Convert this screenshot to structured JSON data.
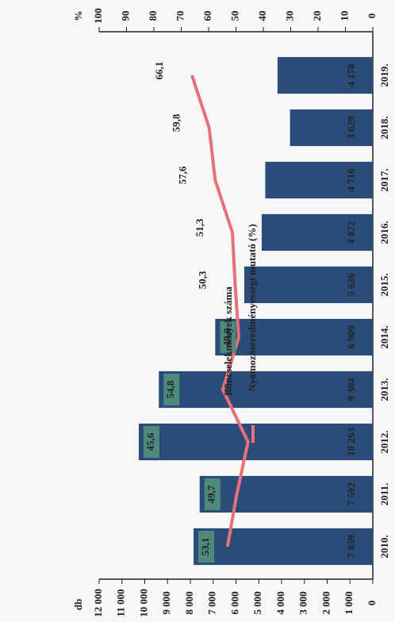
{
  "chart_data": {
    "type": "bar-line",
    "categories": [
      "2010.",
      "2011.",
      "2012.",
      "2013.",
      "2014.",
      "2015.",
      "2016.",
      "2017.",
      "2018.",
      "2019."
    ],
    "y_label": "db",
    "y2_label": "%",
    "series": [
      {
        "name": "Bűncselekmények száma",
        "color": "#2b4c78",
        "type": "bar",
        "values": [
          7859,
          7592,
          10263,
          9384,
          6909,
          5636,
          4872,
          4716,
          3629,
          4178
        ],
        "value_labels": [
          "7 859",
          "7 592",
          "10 263",
          "9 384",
          "6 909",
          "5 636",
          "4 872",
          "4 716",
          "3 629",
          "4 178"
        ]
      },
      {
        "name": "Nyomozáseredményességi mutató (%)",
        "color": "#e8707a",
        "type": "line",
        "axis": "y2",
        "values": [
          53.1,
          49.7,
          45.6,
          54.8,
          49.0,
          50.3,
          51.3,
          57.6,
          59.8,
          66.1
        ],
        "value_labels": [
          "53,1",
          "49,7",
          "45,6",
          "54,8",
          "49,0",
          "50,3",
          "51,3",
          "57,6",
          "59,8",
          "66,1"
        ]
      }
    ],
    "ylim": [
      0,
      12000
    ],
    "yticks": [
      0,
      {
        "value": 1000,
        "label": "1 000"
      },
      {
        "value": 2000,
        "label": "2 000"
      },
      {
        "value": 3000,
        "label": "3 000"
      },
      {
        "value": 4000,
        "label": "4 000"
      },
      {
        "value": 5000,
        "label": "5 000"
      },
      {
        "value": 6000,
        "label": "6 000"
      },
      {
        "value": 7000,
        "label": "7 000"
      },
      {
        "value": 8000,
        "label": "8 000"
      },
      {
        "value": 9000,
        "label": "9 000"
      },
      {
        "value": 10000,
        "label": "10 000"
      },
      {
        "value": 11000,
        "label": "11 000"
      },
      {
        "value": 12000,
        "label": "12 000"
      }
    ],
    "y2lim": [
      0,
      100
    ],
    "y2ticks": [
      0,
      10,
      20,
      30,
      40,
      50,
      60,
      70,
      80,
      90,
      100
    ]
  }
}
